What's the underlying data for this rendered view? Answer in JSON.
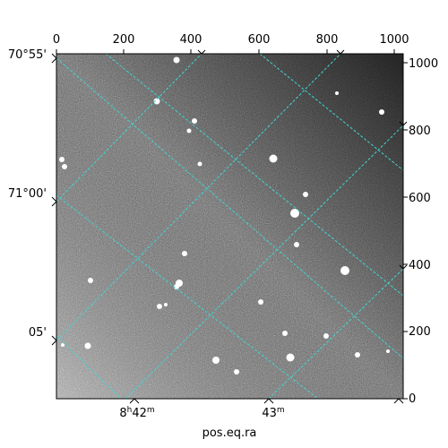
{
  "figure": {
    "x_axis_title": "pos.eq.ra",
    "pixel_ticks_top": [
      "0",
      "200",
      "400",
      "600",
      "800",
      "1000"
    ],
    "pixel_ticks_right": [
      "0",
      "200",
      "400",
      "600",
      "800",
      "1000"
    ],
    "dec_ticks_left": [
      "70°55'",
      "71°00'",
      "05'"
    ],
    "ra_ticks_bottom": [
      {
        "hour": "8",
        "h": "h",
        "min": "42",
        "m": "m"
      },
      {
        "hour": "",
        "h": "",
        "min": "43",
        "m": "m"
      }
    ],
    "grid_color": "#3fd6d2",
    "background": "#ffffff"
  }
}
